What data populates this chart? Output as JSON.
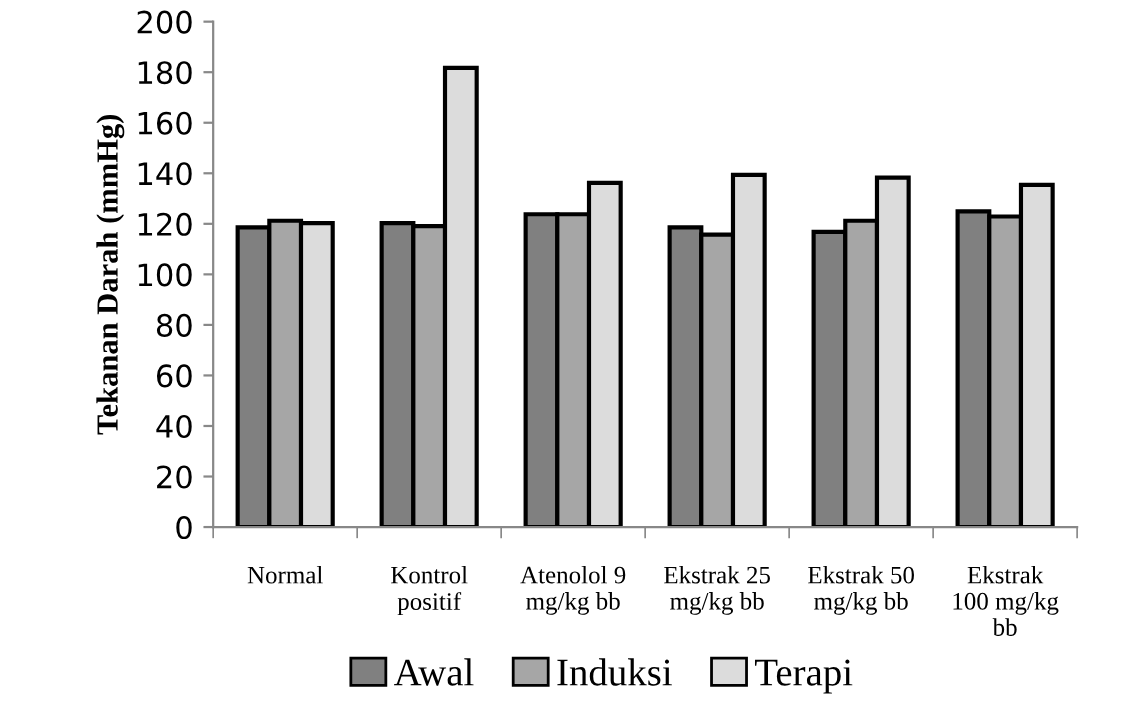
{
  "chart_data": {
    "type": "bar",
    "ylabel": "Tekanan Darah (mmHg)",
    "categories": [
      "Normal",
      "Kontrol positif",
      "Atenolol 9 mg/kg bb",
      "Ekstrak 25 mg/kg bb",
      "Ekstrak 50 mg/kg bb",
      "Ekstrak 100 mg/kg bb"
    ],
    "series": [
      {
        "name": "Awal",
        "color": "#808080",
        "values": [
          118.6,
          120.3,
          123.8,
          118.6,
          116.8,
          124.9
        ]
      },
      {
        "name": "Induksi",
        "color": "#a6a6a6",
        "values": [
          121.2,
          119.1,
          123.8,
          115.7,
          121.2,
          122.9
        ]
      },
      {
        "name": "Terapi",
        "color": "#dcdcdc",
        "values": [
          120.3,
          181.7,
          136.2,
          139.4,
          138.3,
          135.4
        ]
      }
    ],
    "ylim": [
      0,
      200
    ],
    "yticks": [
      0,
      20,
      40,
      60,
      80,
      100,
      120,
      140,
      160,
      180,
      200
    ],
    "grid": false,
    "legend": "bottom"
  }
}
